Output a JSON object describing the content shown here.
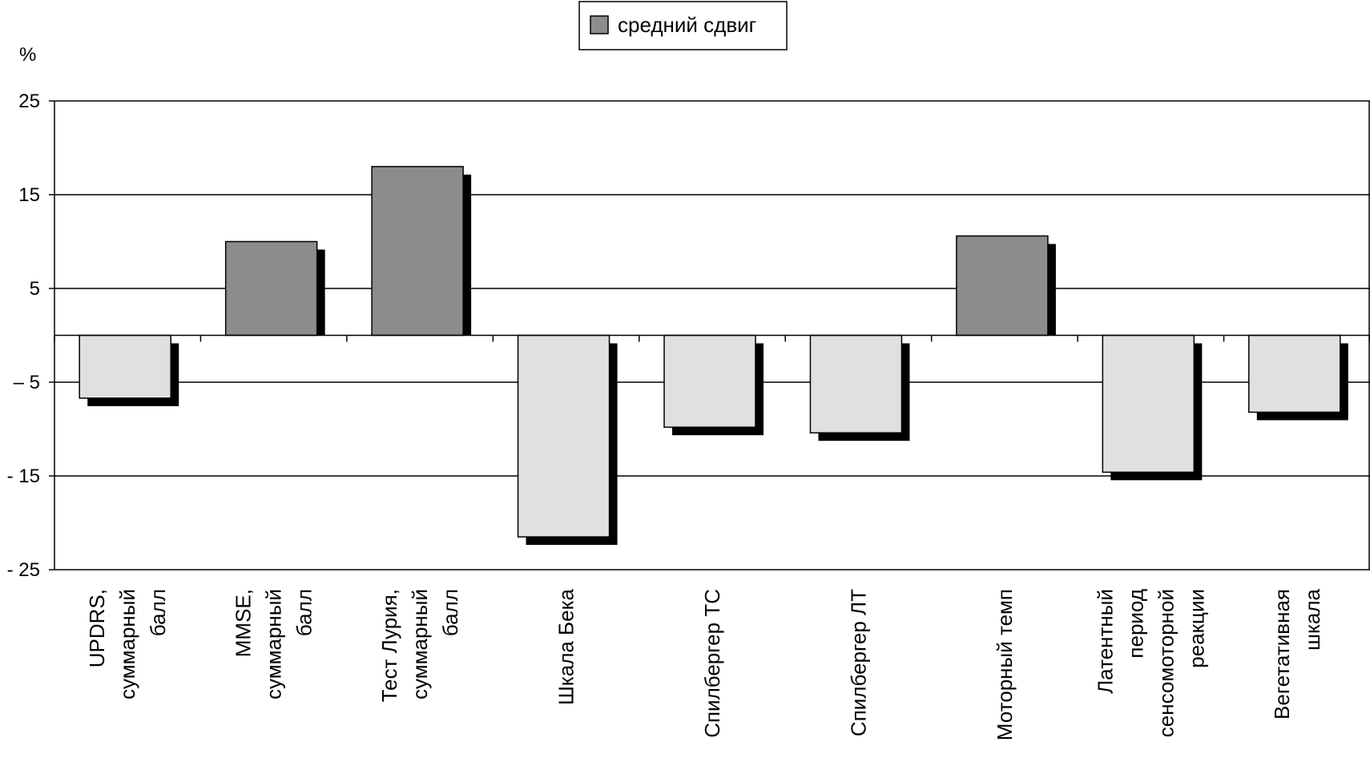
{
  "chart_data": {
    "type": "bar",
    "ylabel": "%",
    "ylim": [
      -25,
      25
    ],
    "yticks": [
      {
        "value": 25,
        "label": "25"
      },
      {
        "value": 15,
        "label": "15"
      },
      {
        "value": 5,
        "label": "5"
      },
      {
        "value": -5,
        "label": "– 5"
      },
      {
        "value": -15,
        "label": "- 15"
      },
      {
        "value": -25,
        "label": "- 25"
      }
    ],
    "grid": true,
    "legend_position": "top-center",
    "series": [
      {
        "name": "средний сдвиг",
        "values": [
          -6.7,
          10,
          18,
          -21.5,
          -9.8,
          -10.4,
          10.6,
          -14.6,
          -8.2
        ]
      }
    ],
    "categories": [
      [
        "UPDRS,",
        "суммарный",
        "балл"
      ],
      [
        "MMSE,",
        "суммарный",
        "балл"
      ],
      [
        "Тест Лурия,",
        "суммарный",
        "балл"
      ],
      [
        "Шкала Бека"
      ],
      [
        "Спилбергер ТС"
      ],
      [
        "Спилбергер ЛТ"
      ],
      [
        "Моторный темп"
      ],
      [
        "Латентный",
        "период",
        "сенсомоторной",
        "реакции"
      ],
      [
        "Вегетативная",
        "шкала"
      ]
    ],
    "colors": {
      "positive": "#8c8c8c",
      "negative": "#e0e0e0",
      "shadow": "#000000"
    }
  }
}
